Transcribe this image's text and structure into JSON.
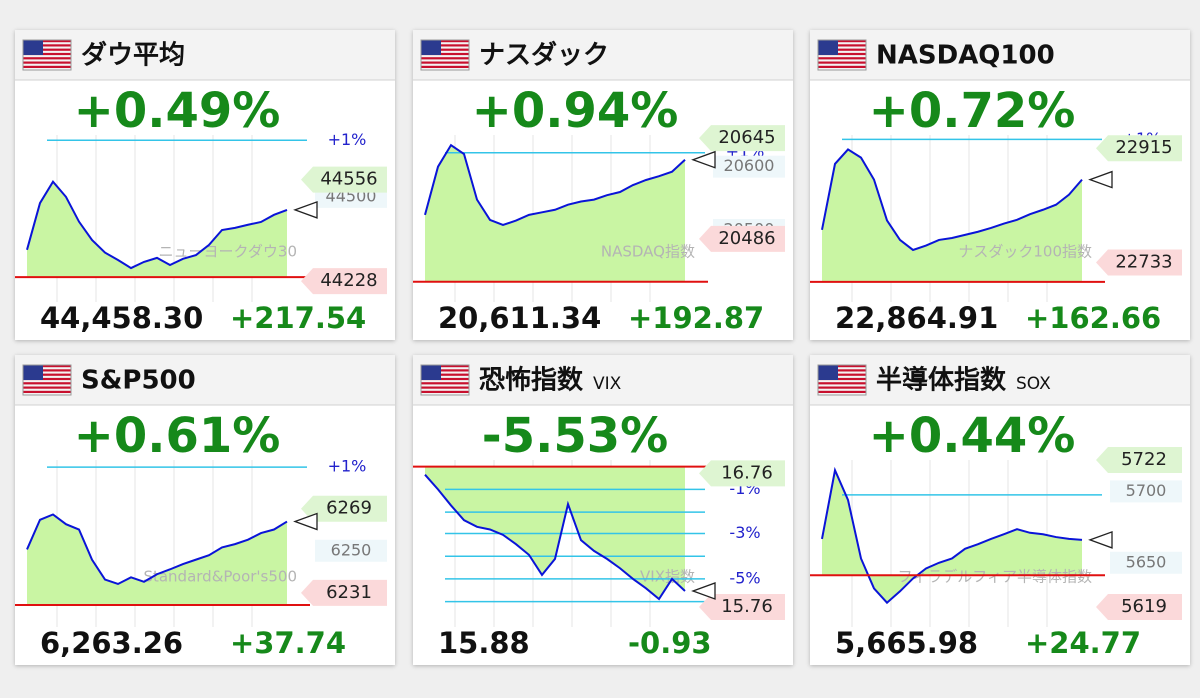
{
  "chart_data": [
    {
      "type": "line",
      "title": "ダウ平均",
      "watermark": "ニューヨークダウ30",
      "change_percent": 0.49,
      "change_percent_label": "+0.49%",
      "price": 44458.3,
      "price_label": "44,458.30",
      "change": 217.54,
      "change_label": "+217.54",
      "xlim": [
        0,
        20
      ],
      "ylim": [
        44225,
        44700
      ],
      "values": [
        44329,
        44480,
        44549,
        44500,
        44420,
        44361,
        44320,
        44296,
        44270,
        44290,
        44303,
        44280,
        44300,
        44312,
        44345,
        44393,
        44400,
        44410,
        44419,
        44442,
        44458
      ],
      "color": "#0a14d8",
      "fill": "#c9f5a3",
      "prev_close": 44240.76,
      "high": 44556,
      "low": 44228,
      "pct_ticks": [
        {
          "value": 44683,
          "label": "+1%"
        }
      ],
      "yticks": [
        44500
      ],
      "grid_lines": []
    },
    {
      "type": "line",
      "title": "ナスダック",
      "watermark": "NASDAQ指数",
      "change_percent": 0.94,
      "change_percent_label": "+0.94%",
      "price": 20611.34,
      "price_label": "20,611.34",
      "change": 192.87,
      "change_label": "+192.87",
      "xlim": [
        0,
        20
      ],
      "ylim": [
        20418,
        20650
      ],
      "values": [
        20524,
        20600,
        20634,
        20620,
        20548,
        20516,
        20508,
        20515,
        20524,
        20528,
        20532,
        20540,
        20545,
        20548,
        20555,
        20560,
        20571,
        20579,
        20585,
        20592,
        20611
      ],
      "color": "#0a14d8",
      "fill": "#c9f5a3",
      "prev_close": 20418.47,
      "high": 20645,
      "low": 20486,
      "pct_ticks": [
        {
          "value": 20622,
          "label": "+1%"
        }
      ],
      "yticks": [
        20600,
        20500
      ],
      "grid_lines": []
    },
    {
      "type": "line",
      "title": "NASDAQ100",
      "watermark": "ナスダック100指数",
      "change_percent": 0.72,
      "change_percent_label": "+0.72%",
      "price": 22864.91,
      "price_label": "22,864.91",
      "change": 162.66,
      "change_label": "+162.66",
      "xlim": [
        0,
        20
      ],
      "ylim": [
        22702,
        22936
      ],
      "values": [
        22785,
        22890,
        22913,
        22900,
        22865,
        22800,
        22769,
        22753,
        22760,
        22769,
        22772,
        22777,
        22782,
        22788,
        22795,
        22801,
        22810,
        22817,
        22825,
        22841,
        22865
      ],
      "color": "#0a14d8",
      "fill": "#c9f5a3",
      "prev_close": 22702.25,
      "high": 22915,
      "low": 22733,
      "pct_ticks": [
        {
          "value": 22929,
          "label": "+1%"
        }
      ],
      "yticks": [],
      "grid_lines": []
    },
    {
      "type": "line",
      "title": "S&P500",
      "watermark": "Standard&Poor's500",
      "change_percent": 0.61,
      "change_percent_label": "+0.61%",
      "price": 6263.26,
      "price_label": "6,263.26",
      "change": 37.74,
      "change_label": "+37.74",
      "xlim": [
        0,
        20
      ],
      "ylim": [
        6224.6,
        6291
      ],
      "values": [
        6250.6,
        6264,
        6266.4,
        6262,
        6259.6,
        6246,
        6237,
        6235,
        6238,
        6236,
        6239.4,
        6241.6,
        6244,
        6246,
        6248,
        6251.5,
        6253,
        6255,
        6258,
        6259.6,
        6263.2
      ],
      "color": "#0a14d8",
      "fill": "#c9f5a3",
      "prev_close": 6225.52,
      "high": 6269,
      "low": 6231,
      "pct_ticks": [
        {
          "value": 6287.8,
          "label": "+1%"
        }
      ],
      "yticks": [
        6250
      ],
      "grid_lines": []
    },
    {
      "type": "line",
      "title": "恐怖指数",
      "subtitle": "VIX",
      "watermark": "VIX指数",
      "change_percent": -5.53,
      "change_percent_label": "-5.53%",
      "price": 15.88,
      "price_label": "15.88",
      "change": -0.93,
      "change_label": "-0.93",
      "xlim": [
        0,
        20
      ],
      "ylim": [
        15.76,
        16.86
      ],
      "values": [
        16.75,
        16.64,
        16.52,
        16.41,
        16.36,
        16.34,
        16.3,
        16.23,
        16.15,
        16.0,
        16.12,
        16.53,
        16.26,
        16.18,
        16.12,
        16.05,
        15.97,
        15.9,
        15.82,
        15.97,
        15.88
      ],
      "color": "#0a14d8",
      "fill": "#c9f5a3",
      "prev_close": 16.81,
      "high": 16.76,
      "low": 15.76,
      "pct_ticks": [
        {
          "value": 16.64,
          "label": "-1%"
        },
        {
          "value": 16.31,
          "label": "-3%"
        },
        {
          "value": 15.97,
          "label": "-5%"
        }
      ],
      "yticks": [],
      "grid_lines": [
        16.47,
        16.14,
        15.8
      ]
    },
    {
      "type": "line",
      "title": "半導体指数",
      "subtitle": "SOX",
      "watermark": "フィラデルフィア半導体指数",
      "change_percent": 0.44,
      "change_percent_label": "+0.44%",
      "price": 5665.98,
      "price_label": "5,665.98",
      "change": 24.77,
      "change_label": "+24.77",
      "xlim": [
        0,
        20
      ],
      "ylim": [
        5619,
        5722
      ],
      "values": [
        5666.7,
        5714.8,
        5694,
        5653,
        5632,
        5622,
        5630,
        5639,
        5646,
        5650,
        5653,
        5659.8,
        5663,
        5666.7,
        5670,
        5673.5,
        5671,
        5670,
        5668,
        5666.7,
        5666
      ],
      "color": "#0a14d8",
      "fill": "#c9f5a3",
      "prev_close": 5641.21,
      "high": 5722,
      "low": 5619,
      "pct_ticks": [],
      "yticks": [
        5700,
        5650
      ],
      "grid_lines": [
        5697.6
      ]
    }
  ]
}
